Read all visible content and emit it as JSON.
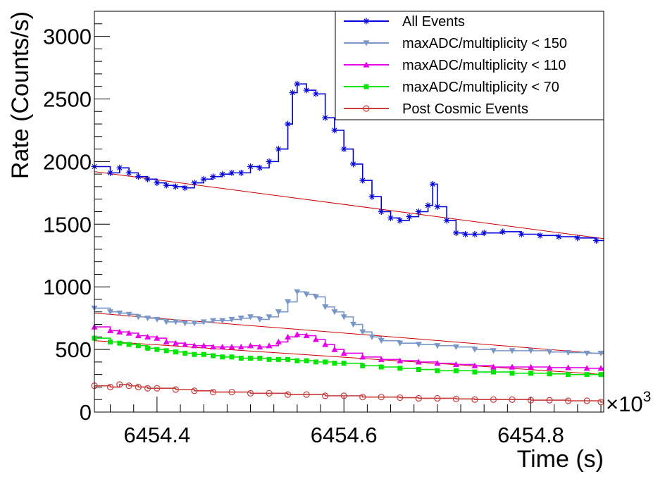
{
  "chart_data": {
    "type": "line",
    "xlabel": "Time (s)",
    "ylabel": "Rate (Counts/s)",
    "x_multiplier": {
      "base": "×10",
      "exponent": "3"
    },
    "xlim": [
      6454.333,
      6454.878
    ],
    "ylim": [
      0,
      3200
    ],
    "x_ticks": [
      6454.4,
      6454.6,
      6454.8
    ],
    "x_tick_labels": [
      "6454.4",
      "6454.6",
      "6454.8"
    ],
    "y_ticks": [
      0,
      500,
      1000,
      1500,
      2000,
      2500,
      3000
    ],
    "y_tick_labels": [
      "0",
      "500",
      "1000",
      "1500",
      "2000",
      "2500",
      "3000"
    ],
    "grid": false,
    "legend_position": "top-right",
    "series": [
      {
        "name": "All Events",
        "color": "#0000dd",
        "marker": "asterisk",
        "style": "step",
        "points": [
          [
            6454.333,
            1960
          ],
          [
            6454.35,
            1910
          ],
          [
            6454.36,
            1950
          ],
          [
            6454.37,
            1910
          ],
          [
            6454.38,
            1880
          ],
          [
            6454.39,
            1860
          ],
          [
            6454.4,
            1830
          ],
          [
            6454.41,
            1810
          ],
          [
            6454.42,
            1800
          ],
          [
            6454.43,
            1790
          ],
          [
            6454.44,
            1830
          ],
          [
            6454.45,
            1860
          ],
          [
            6454.46,
            1880
          ],
          [
            6454.47,
            1900
          ],
          [
            6454.48,
            1910
          ],
          [
            6454.49,
            1910
          ],
          [
            6454.5,
            1960
          ],
          [
            6454.51,
            1950
          ],
          [
            6454.52,
            2000
          ],
          [
            6454.53,
            2100
          ],
          [
            6454.54,
            2300
          ],
          [
            6454.545,
            2550
          ],
          [
            6454.55,
            2620
          ],
          [
            6454.56,
            2570
          ],
          [
            6454.57,
            2540
          ],
          [
            6454.58,
            2350
          ],
          [
            6454.59,
            2250
          ],
          [
            6454.6,
            2100
          ],
          [
            6454.61,
            1980
          ],
          [
            6454.62,
            1850
          ],
          [
            6454.63,
            1720
          ],
          [
            6454.64,
            1600
          ],
          [
            6454.65,
            1550
          ],
          [
            6454.66,
            1530
          ],
          [
            6454.67,
            1560
          ],
          [
            6454.68,
            1600
          ],
          [
            6454.69,
            1650
          ],
          [
            6454.695,
            1820
          ],
          [
            6454.7,
            1640
          ],
          [
            6454.71,
            1530
          ],
          [
            6454.72,
            1430
          ],
          [
            6454.73,
            1420
          ],
          [
            6454.74,
            1420
          ],
          [
            6454.75,
            1430
          ],
          [
            6454.77,
            1440
          ],
          [
            6454.79,
            1420
          ],
          [
            6454.81,
            1410
          ],
          [
            6454.83,
            1400
          ],
          [
            6454.85,
            1390
          ],
          [
            6454.87,
            1370
          ]
        ]
      },
      {
        "name": "maxADC/multiplicity < 150",
        "color": "#7896c8",
        "marker": "triangle-down",
        "style": "step",
        "points": [
          [
            6454.333,
            830
          ],
          [
            6454.35,
            800
          ],
          [
            6454.36,
            790
          ],
          [
            6454.37,
            780
          ],
          [
            6454.38,
            760
          ],
          [
            6454.39,
            750
          ],
          [
            6454.4,
            740
          ],
          [
            6454.41,
            720
          ],
          [
            6454.42,
            720
          ],
          [
            6454.43,
            710
          ],
          [
            6454.44,
            710
          ],
          [
            6454.45,
            720
          ],
          [
            6454.46,
            730
          ],
          [
            6454.47,
            730
          ],
          [
            6454.48,
            740
          ],
          [
            6454.49,
            750
          ],
          [
            6454.5,
            760
          ],
          [
            6454.51,
            740
          ],
          [
            6454.52,
            760
          ],
          [
            6454.53,
            800
          ],
          [
            6454.54,
            880
          ],
          [
            6454.55,
            960
          ],
          [
            6454.56,
            940
          ],
          [
            6454.57,
            920
          ],
          [
            6454.58,
            840
          ],
          [
            6454.59,
            800
          ],
          [
            6454.6,
            760
          ],
          [
            6454.61,
            700
          ],
          [
            6454.62,
            640
          ],
          [
            6454.63,
            600
          ],
          [
            6454.64,
            570
          ],
          [
            6454.66,
            550
          ],
          [
            6454.68,
            540
          ],
          [
            6454.7,
            530
          ],
          [
            6454.72,
            520
          ],
          [
            6454.74,
            500
          ],
          [
            6454.76,
            490
          ],
          [
            6454.78,
            490
          ],
          [
            6454.8,
            490
          ],
          [
            6454.82,
            480
          ],
          [
            6454.84,
            475
          ],
          [
            6454.86,
            470
          ],
          [
            6454.875,
            470
          ]
        ]
      },
      {
        "name": "maxADC/multiplicity < 110",
        "color": "#e600e6",
        "marker": "triangle-up",
        "style": "step",
        "points": [
          [
            6454.333,
            680
          ],
          [
            6454.35,
            650
          ],
          [
            6454.36,
            640
          ],
          [
            6454.37,
            630
          ],
          [
            6454.38,
            610
          ],
          [
            6454.39,
            600
          ],
          [
            6454.4,
            590
          ],
          [
            6454.41,
            560
          ],
          [
            6454.42,
            550
          ],
          [
            6454.43,
            540
          ],
          [
            6454.44,
            530
          ],
          [
            6454.45,
            530
          ],
          [
            6454.46,
            520
          ],
          [
            6454.47,
            520
          ],
          [
            6454.48,
            520
          ],
          [
            6454.49,
            520
          ],
          [
            6454.5,
            530
          ],
          [
            6454.51,
            520
          ],
          [
            6454.52,
            530
          ],
          [
            6454.53,
            560
          ],
          [
            6454.54,
            600
          ],
          [
            6454.55,
            620
          ],
          [
            6454.56,
            610
          ],
          [
            6454.57,
            580
          ],
          [
            6454.58,
            540
          ],
          [
            6454.59,
            500
          ],
          [
            6454.6,
            470
          ],
          [
            6454.62,
            440
          ],
          [
            6454.64,
            420
          ],
          [
            6454.66,
            410
          ],
          [
            6454.68,
            400
          ],
          [
            6454.7,
            390
          ],
          [
            6454.72,
            380
          ],
          [
            6454.74,
            370
          ],
          [
            6454.76,
            360
          ],
          [
            6454.78,
            360
          ],
          [
            6454.8,
            360
          ],
          [
            6454.82,
            355
          ],
          [
            6454.84,
            355
          ],
          [
            6454.86,
            350
          ],
          [
            6454.875,
            350
          ]
        ]
      },
      {
        "name": "maxADC/multiplicity < 70",
        "color": "#00e600",
        "marker": "square",
        "style": "step",
        "points": [
          [
            6454.333,
            590
          ],
          [
            6454.35,
            560
          ],
          [
            6454.36,
            550
          ],
          [
            6454.37,
            540
          ],
          [
            6454.38,
            530
          ],
          [
            6454.39,
            510
          ],
          [
            6454.4,
            500
          ],
          [
            6454.41,
            490
          ],
          [
            6454.42,
            480
          ],
          [
            6454.43,
            470
          ],
          [
            6454.44,
            460
          ],
          [
            6454.45,
            460
          ],
          [
            6454.46,
            450
          ],
          [
            6454.47,
            440
          ],
          [
            6454.48,
            440
          ],
          [
            6454.49,
            430
          ],
          [
            6454.5,
            430
          ],
          [
            6454.51,
            430
          ],
          [
            6454.52,
            420
          ],
          [
            6454.53,
            420
          ],
          [
            6454.54,
            420
          ],
          [
            6454.55,
            410
          ],
          [
            6454.56,
            410
          ],
          [
            6454.57,
            400
          ],
          [
            6454.58,
            400
          ],
          [
            6454.59,
            390
          ],
          [
            6454.6,
            390
          ],
          [
            6454.62,
            370
          ],
          [
            6454.64,
            360
          ],
          [
            6454.66,
            350
          ],
          [
            6454.68,
            340
          ],
          [
            6454.7,
            330
          ],
          [
            6454.72,
            330
          ],
          [
            6454.74,
            320
          ],
          [
            6454.76,
            320
          ],
          [
            6454.78,
            310
          ],
          [
            6454.8,
            310
          ],
          [
            6454.82,
            305
          ],
          [
            6454.84,
            300
          ],
          [
            6454.86,
            300
          ],
          [
            6454.875,
            300
          ]
        ]
      },
      {
        "name": "Post Cosmic Events",
        "color": "#c83c3c",
        "marker": "circle-open",
        "style": "step",
        "points": [
          [
            6454.333,
            210
          ],
          [
            6454.35,
            200
          ],
          [
            6454.36,
            220
          ],
          [
            6454.37,
            210
          ],
          [
            6454.38,
            200
          ],
          [
            6454.39,
            190
          ],
          [
            6454.4,
            190
          ],
          [
            6454.42,
            180
          ],
          [
            6454.44,
            170
          ],
          [
            6454.46,
            160
          ],
          [
            6454.48,
            160
          ],
          [
            6454.5,
            150
          ],
          [
            6454.52,
            150
          ],
          [
            6454.54,
            140
          ],
          [
            6454.56,
            140
          ],
          [
            6454.58,
            130
          ],
          [
            6454.6,
            130
          ],
          [
            6454.62,
            120
          ],
          [
            6454.64,
            120
          ],
          [
            6454.66,
            115
          ],
          [
            6454.68,
            110
          ],
          [
            6454.7,
            110
          ],
          [
            6454.72,
            105
          ],
          [
            6454.74,
            100
          ],
          [
            6454.76,
            100
          ],
          [
            6454.78,
            100
          ],
          [
            6454.8,
            95
          ],
          [
            6454.82,
            95
          ],
          [
            6454.84,
            90
          ],
          [
            6454.86,
            90
          ],
          [
            6454.875,
            80
          ]
        ]
      }
    ],
    "fits": {
      "color": "#cc0000",
      "lines": [
        [
          [
            6454.333,
            1920
          ],
          [
            6454.878,
            1385
          ]
        ],
        [
          [
            6454.333,
            790
          ],
          [
            6454.878,
            465
          ]
        ],
        [
          [
            6454.333,
            570
          ],
          [
            6454.878,
            300
          ]
        ]
      ]
    }
  }
}
